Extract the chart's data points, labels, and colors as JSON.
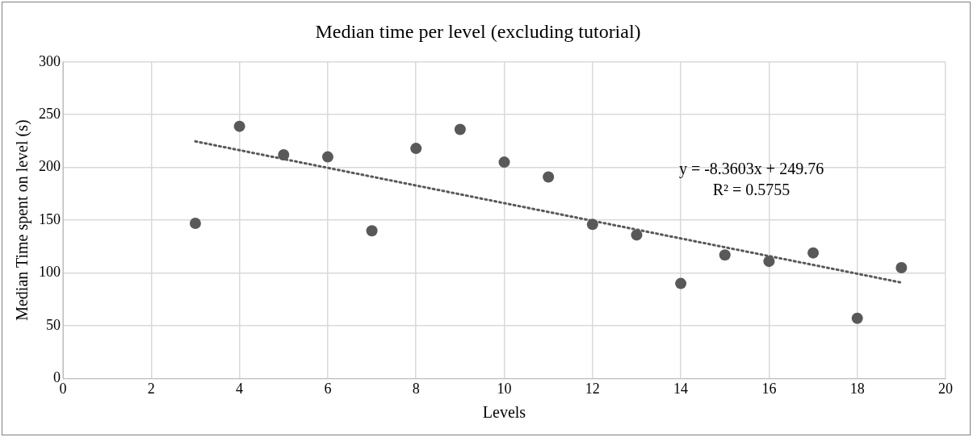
{
  "chart_data": {
    "type": "scatter",
    "title": "Median time per level (excluding tutorial)",
    "xlabel": "Levels",
    "ylabel": "Median Time spent on level (s)",
    "xlim": [
      0,
      20
    ],
    "xticks": [
      0,
      2,
      4,
      6,
      8,
      10,
      12,
      14,
      16,
      18,
      20
    ],
    "ylim": [
      0,
      300
    ],
    "yticks": [
      0,
      50,
      100,
      150,
      200,
      250,
      300
    ],
    "grid": true,
    "legend": false,
    "marker": "circle",
    "annotations": [
      "y = -8.3603x + 249.76",
      "R² = 0.5755"
    ],
    "series": [
      {
        "type": "scatter",
        "color": "#595959",
        "x": [
          3,
          4,
          5,
          6,
          7,
          8,
          9,
          10,
          11,
          12,
          13,
          14,
          15,
          16,
          17,
          18,
          19
        ],
        "values": [
          147,
          239,
          212,
          210,
          140,
          218,
          236,
          205,
          191,
          146,
          136,
          90,
          117,
          111,
          119,
          57,
          105
        ]
      },
      {
        "type": "line",
        "color": "#595959",
        "line_style": "dotted",
        "marker": "none",
        "x": [
          3,
          19
        ],
        "values": [
          224.7,
          90.9
        ]
      }
    ]
  }
}
